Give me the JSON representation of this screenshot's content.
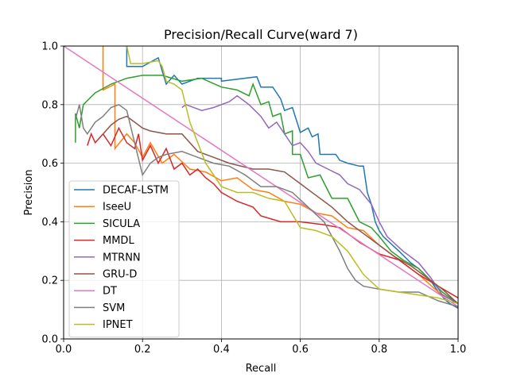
{
  "chart_data": {
    "type": "line",
    "title": "Precision/Recall Curve(ward 7)",
    "xlabel": "Recall",
    "ylabel": "Precision",
    "xlim": [
      0.0,
      1.0
    ],
    "ylim": [
      0.0,
      1.0
    ],
    "xticks": [
      "0.0",
      "0.2",
      "0.4",
      "0.6",
      "0.8",
      "1.0"
    ],
    "yticks": [
      "0.0",
      "0.2",
      "0.4",
      "0.6",
      "0.8",
      "1.0"
    ],
    "grid": true,
    "legend_position": "lower-left",
    "series": [
      {
        "name": "DECAF-LSTM",
        "color": "#1f77b4",
        "points": [
          [
            0.16,
            1.0
          ],
          [
            0.16,
            0.93
          ],
          [
            0.2,
            0.93
          ],
          [
            0.24,
            0.96
          ],
          [
            0.26,
            0.87
          ],
          [
            0.28,
            0.9
          ],
          [
            0.3,
            0.87
          ],
          [
            0.34,
            0.89
          ],
          [
            0.4,
            0.89
          ],
          [
            0.4,
            0.88
          ],
          [
            0.49,
            0.895
          ],
          [
            0.5,
            0.86
          ],
          [
            0.53,
            0.86
          ],
          [
            0.54,
            0.84
          ],
          [
            0.55,
            0.82
          ],
          [
            0.56,
            0.78
          ],
          [
            0.58,
            0.79
          ],
          [
            0.6,
            0.705
          ],
          [
            0.62,
            0.72
          ],
          [
            0.63,
            0.69
          ],
          [
            0.645,
            0.7
          ],
          [
            0.65,
            0.63
          ],
          [
            0.69,
            0.63
          ],
          [
            0.7,
            0.61
          ],
          [
            0.72,
            0.6
          ],
          [
            0.75,
            0.59
          ],
          [
            0.76,
            0.59
          ],
          [
            0.77,
            0.5
          ],
          [
            0.78,
            0.46
          ],
          [
            0.79,
            0.4
          ],
          [
            0.8,
            0.37
          ],
          [
            0.81,
            0.35
          ],
          [
            0.85,
            0.3
          ],
          [
            0.88,
            0.26
          ],
          [
            0.9,
            0.24
          ],
          [
            0.93,
            0.2
          ],
          [
            0.95,
            0.16
          ],
          [
            0.97,
            0.13
          ],
          [
            0.98,
            0.12
          ],
          [
            1.0,
            0.105
          ]
        ]
      },
      {
        "name": "IseeU",
        "color": "#ff7f0e",
        "points": [
          [
            0.1,
            1.0
          ],
          [
            0.1,
            0.85
          ],
          [
            0.13,
            0.87
          ],
          [
            0.13,
            0.65
          ],
          [
            0.16,
            0.7
          ],
          [
            0.18,
            0.67
          ],
          [
            0.2,
            0.62
          ],
          [
            0.22,
            0.67
          ],
          [
            0.25,
            0.6
          ],
          [
            0.28,
            0.63
          ],
          [
            0.32,
            0.58
          ],
          [
            0.36,
            0.57
          ],
          [
            0.4,
            0.54
          ],
          [
            0.44,
            0.55
          ],
          [
            0.48,
            0.51
          ],
          [
            0.52,
            0.5
          ],
          [
            0.56,
            0.47
          ],
          [
            0.6,
            0.46
          ],
          [
            0.64,
            0.43
          ],
          [
            0.68,
            0.42
          ],
          [
            0.72,
            0.38
          ],
          [
            0.76,
            0.37
          ],
          [
            0.8,
            0.32
          ],
          [
            0.85,
            0.27
          ],
          [
            0.9,
            0.22
          ],
          [
            0.95,
            0.16
          ],
          [
            1.0,
            0.12
          ]
        ]
      },
      {
        "name": "SICULA",
        "color": "#2ca02c",
        "points": [
          [
            0.03,
            0.67
          ],
          [
            0.03,
            0.77
          ],
          [
            0.04,
            0.72
          ],
          [
            0.05,
            0.8
          ],
          [
            0.08,
            0.84
          ],
          [
            0.12,
            0.87
          ],
          [
            0.16,
            0.89
          ],
          [
            0.2,
            0.9
          ],
          [
            0.25,
            0.9
          ],
          [
            0.3,
            0.88
          ],
          [
            0.35,
            0.89
          ],
          [
            0.4,
            0.86
          ],
          [
            0.44,
            0.85
          ],
          [
            0.47,
            0.83
          ],
          [
            0.48,
            0.87
          ],
          [
            0.5,
            0.8
          ],
          [
            0.52,
            0.81
          ],
          [
            0.53,
            0.76
          ],
          [
            0.55,
            0.77
          ],
          [
            0.56,
            0.7
          ],
          [
            0.58,
            0.71
          ],
          [
            0.58,
            0.63
          ],
          [
            0.6,
            0.63
          ],
          [
            0.62,
            0.55
          ],
          [
            0.65,
            0.56
          ],
          [
            0.68,
            0.48
          ],
          [
            0.72,
            0.48
          ],
          [
            0.75,
            0.4
          ],
          [
            0.78,
            0.38
          ],
          [
            0.8,
            0.35
          ],
          [
            0.83,
            0.3
          ],
          [
            0.86,
            0.27
          ],
          [
            0.9,
            0.24
          ],
          [
            0.93,
            0.2
          ],
          [
            0.96,
            0.16
          ],
          [
            1.0,
            0.12
          ]
        ]
      },
      {
        "name": "MMDL",
        "color": "#d62728",
        "points": [
          [
            0.06,
            0.66
          ],
          [
            0.07,
            0.7
          ],
          [
            0.08,
            0.67
          ],
          [
            0.1,
            0.7
          ],
          [
            0.12,
            0.66
          ],
          [
            0.14,
            0.72
          ],
          [
            0.16,
            0.67
          ],
          [
            0.18,
            0.65
          ],
          [
            0.19,
            0.7
          ],
          [
            0.2,
            0.61
          ],
          [
            0.22,
            0.66
          ],
          [
            0.24,
            0.6
          ],
          [
            0.26,
            0.65
          ],
          [
            0.28,
            0.58
          ],
          [
            0.3,
            0.6
          ],
          [
            0.32,
            0.56
          ],
          [
            0.34,
            0.58
          ],
          [
            0.36,
            0.55
          ],
          [
            0.38,
            0.53
          ],
          [
            0.4,
            0.5
          ],
          [
            0.44,
            0.47
          ],
          [
            0.48,
            0.45
          ],
          [
            0.5,
            0.42
          ],
          [
            0.55,
            0.4
          ],
          [
            0.6,
            0.4
          ],
          [
            0.66,
            0.39
          ],
          [
            0.7,
            0.38
          ],
          [
            0.75,
            0.33
          ],
          [
            0.8,
            0.29
          ],
          [
            0.85,
            0.27
          ],
          [
            0.9,
            0.22
          ],
          [
            0.95,
            0.18
          ],
          [
            1.0,
            0.14
          ]
        ]
      },
      {
        "name": "MTRNN",
        "color": "#9467bd",
        "points": [
          [
            0.3,
            0.79
          ],
          [
            0.31,
            0.8
          ],
          [
            0.35,
            0.78
          ],
          [
            0.38,
            0.79
          ],
          [
            0.42,
            0.81
          ],
          [
            0.44,
            0.83
          ],
          [
            0.47,
            0.8
          ],
          [
            0.5,
            0.76
          ],
          [
            0.52,
            0.72
          ],
          [
            0.54,
            0.74
          ],
          [
            0.56,
            0.7
          ],
          [
            0.58,
            0.66
          ],
          [
            0.6,
            0.67
          ],
          [
            0.62,
            0.64
          ],
          [
            0.64,
            0.6
          ],
          [
            0.67,
            0.58
          ],
          [
            0.7,
            0.56
          ],
          [
            0.72,
            0.53
          ],
          [
            0.75,
            0.51
          ],
          [
            0.78,
            0.46
          ],
          [
            0.8,
            0.4
          ],
          [
            0.82,
            0.35
          ],
          [
            0.86,
            0.3
          ],
          [
            0.9,
            0.26
          ],
          [
            0.93,
            0.21
          ],
          [
            0.96,
            0.15
          ],
          [
            1.0,
            0.12
          ]
        ]
      },
      {
        "name": "GRU-D",
        "color": "#8c564b",
        "points": [
          [
            0.1,
            0.7
          ],
          [
            0.12,
            0.73
          ],
          [
            0.14,
            0.75
          ],
          [
            0.16,
            0.76
          ],
          [
            0.18,
            0.74
          ],
          [
            0.2,
            0.72
          ],
          [
            0.22,
            0.71
          ],
          [
            0.26,
            0.7
          ],
          [
            0.3,
            0.7
          ],
          [
            0.34,
            0.64
          ],
          [
            0.38,
            0.62
          ],
          [
            0.42,
            0.6
          ],
          [
            0.48,
            0.58
          ],
          [
            0.52,
            0.58
          ],
          [
            0.56,
            0.57
          ],
          [
            0.6,
            0.53
          ],
          [
            0.64,
            0.49
          ],
          [
            0.68,
            0.45
          ],
          [
            0.72,
            0.4
          ],
          [
            0.76,
            0.36
          ],
          [
            0.8,
            0.32
          ],
          [
            0.84,
            0.28
          ],
          [
            0.88,
            0.25
          ],
          [
            0.92,
            0.21
          ],
          [
            0.96,
            0.17
          ],
          [
            1.0,
            0.12
          ]
        ]
      },
      {
        "name": "DT",
        "color": "#e377c2",
        "points": [
          [
            0.0,
            1.0
          ],
          [
            1.0,
            0.11
          ]
        ]
      },
      {
        "name": "SVM",
        "color": "#7f7f7f",
        "points": [
          [
            0.03,
            0.75
          ],
          [
            0.04,
            0.8
          ],
          [
            0.05,
            0.72
          ],
          [
            0.06,
            0.7
          ],
          [
            0.08,
            0.74
          ],
          [
            0.1,
            0.76
          ],
          [
            0.12,
            0.79
          ],
          [
            0.14,
            0.8
          ],
          [
            0.16,
            0.78
          ],
          [
            0.18,
            0.67
          ],
          [
            0.2,
            0.56
          ],
          [
            0.22,
            0.6
          ],
          [
            0.24,
            0.62
          ],
          [
            0.26,
            0.63
          ],
          [
            0.3,
            0.64
          ],
          [
            0.34,
            0.62
          ],
          [
            0.38,
            0.6
          ],
          [
            0.42,
            0.59
          ],
          [
            0.46,
            0.56
          ],
          [
            0.5,
            0.52
          ],
          [
            0.54,
            0.52
          ],
          [
            0.58,
            0.5
          ],
          [
            0.62,
            0.45
          ],
          [
            0.66,
            0.4
          ],
          [
            0.7,
            0.3
          ],
          [
            0.72,
            0.24
          ],
          [
            0.74,
            0.2
          ],
          [
            0.76,
            0.18
          ],
          [
            0.8,
            0.17
          ],
          [
            0.85,
            0.16
          ],
          [
            0.9,
            0.16
          ],
          [
            0.95,
            0.13
          ],
          [
            1.0,
            0.11
          ]
        ]
      },
      {
        "name": "IPNET",
        "color": "#bcbd22",
        "points": [
          [
            0.16,
            1.0
          ],
          [
            0.17,
            0.94
          ],
          [
            0.2,
            0.94
          ],
          [
            0.24,
            0.95
          ],
          [
            0.25,
            0.93
          ],
          [
            0.26,
            0.88
          ],
          [
            0.28,
            0.87
          ],
          [
            0.3,
            0.85
          ],
          [
            0.32,
            0.74
          ],
          [
            0.36,
            0.6
          ],
          [
            0.4,
            0.52
          ],
          [
            0.44,
            0.5
          ],
          [
            0.48,
            0.5
          ],
          [
            0.52,
            0.48
          ],
          [
            0.56,
            0.47
          ],
          [
            0.6,
            0.38
          ],
          [
            0.64,
            0.37
          ],
          [
            0.68,
            0.35
          ],
          [
            0.72,
            0.3
          ],
          [
            0.76,
            0.22
          ],
          [
            0.8,
            0.17
          ],
          [
            0.85,
            0.16
          ],
          [
            0.9,
            0.15
          ],
          [
            0.95,
            0.14
          ],
          [
            1.0,
            0.12
          ]
        ]
      }
    ]
  }
}
